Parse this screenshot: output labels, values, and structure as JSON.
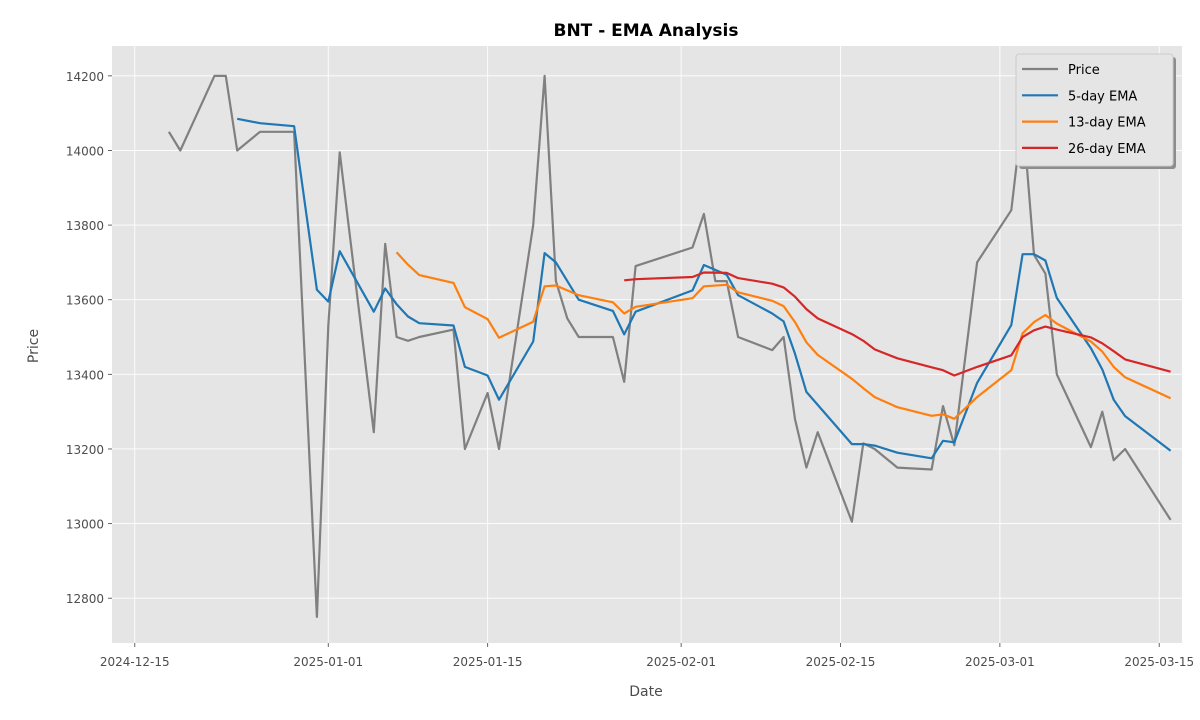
{
  "chart_data": {
    "type": "line",
    "title": "BNT - EMA Analysis",
    "xlabel": "Date",
    "ylabel": "Price",
    "xlim": [
      "2024-12-13",
      "2025-03-17"
    ],
    "ylim": [
      12680,
      14280
    ],
    "x_ticks": [
      "2024-12-15",
      "2025-01-01",
      "2025-01-15",
      "2025-02-01",
      "2025-02-15",
      "2025-03-01",
      "2025-03-15"
    ],
    "y_ticks": [
      12800,
      13000,
      13200,
      13400,
      13600,
      13800,
      14000,
      14200
    ],
    "grid": true,
    "legend_position": "top-right",
    "series": [
      {
        "name": "Price",
        "color": "#808080",
        "points": [
          [
            "2024-12-18",
            14050
          ],
          [
            "2024-12-19",
            14000
          ],
          [
            "2024-12-22",
            14200
          ],
          [
            "2024-12-23",
            14200
          ],
          [
            "2024-12-24",
            14000
          ],
          [
            "2024-12-26",
            14050
          ],
          [
            "2024-12-29",
            14050
          ],
          [
            "2024-12-31",
            12750
          ],
          [
            "2025-01-01",
            13530
          ],
          [
            "2025-01-02",
            13995
          ],
          [
            "2025-01-05",
            13245
          ],
          [
            "2025-01-06",
            13750
          ],
          [
            "2025-01-07",
            13500
          ],
          [
            "2025-01-08",
            13490
          ],
          [
            "2025-01-09",
            13500
          ],
          [
            "2025-01-12",
            13520
          ],
          [
            "2025-01-13",
            13200
          ],
          [
            "2025-01-15",
            13350
          ],
          [
            "2025-01-16",
            13200
          ],
          [
            "2025-01-19",
            13800
          ],
          [
            "2025-01-20",
            14200
          ],
          [
            "2025-01-21",
            13650
          ],
          [
            "2025-01-22",
            13550
          ],
          [
            "2025-01-23",
            13500
          ],
          [
            "2025-01-26",
            13500
          ],
          [
            "2025-01-27",
            13380
          ],
          [
            "2025-01-28",
            13690
          ],
          [
            "2025-02-02",
            13740
          ],
          [
            "2025-02-03",
            13830
          ],
          [
            "2025-02-04",
            13650
          ],
          [
            "2025-02-05",
            13650
          ],
          [
            "2025-02-06",
            13500
          ],
          [
            "2025-02-09",
            13465
          ],
          [
            "2025-02-10",
            13500
          ],
          [
            "2025-02-11",
            13280
          ],
          [
            "2025-02-12",
            13150
          ],
          [
            "2025-02-13",
            13245
          ],
          [
            "2025-02-16",
            13005
          ],
          [
            "2025-02-17",
            13215
          ],
          [
            "2025-02-18",
            13200
          ],
          [
            "2025-02-20",
            13150
          ],
          [
            "2025-02-23",
            13145
          ],
          [
            "2025-02-24",
            13315
          ],
          [
            "2025-02-25",
            13210
          ],
          [
            "2025-02-27",
            13700
          ],
          [
            "2025-03-02",
            13840
          ],
          [
            "2025-03-03",
            14100
          ],
          [
            "2025-03-04",
            13720
          ],
          [
            "2025-03-05",
            13670
          ],
          [
            "2025-03-06",
            13400
          ],
          [
            "2025-03-09",
            13205
          ],
          [
            "2025-03-10",
            13300
          ],
          [
            "2025-03-11",
            13170
          ],
          [
            "2025-03-12",
            13200
          ],
          [
            "2025-03-16",
            13010
          ]
        ]
      },
      {
        "name": "5-day EMA",
        "color": "#1f77b4",
        "points": [
          [
            "2024-12-24",
            14085
          ],
          [
            "2024-12-26",
            14073
          ],
          [
            "2024-12-29",
            14065
          ],
          [
            "2024-12-31",
            13627
          ],
          [
            "2025-01-01",
            13595
          ],
          [
            "2025-01-02",
            13730
          ],
          [
            "2025-01-05",
            13568
          ],
          [
            "2025-01-06",
            13630
          ],
          [
            "2025-01-07",
            13588
          ],
          [
            "2025-01-08",
            13555
          ],
          [
            "2025-01-09",
            13537
          ],
          [
            "2025-01-12",
            13531
          ],
          [
            "2025-01-13",
            13420
          ],
          [
            "2025-01-15",
            13397
          ],
          [
            "2025-01-16",
            13332
          ],
          [
            "2025-01-19",
            13488
          ],
          [
            "2025-01-20",
            13725
          ],
          [
            "2025-01-21",
            13700
          ],
          [
            "2025-01-23",
            13600
          ],
          [
            "2025-01-26",
            13570
          ],
          [
            "2025-01-27",
            13507
          ],
          [
            "2025-01-28",
            13568
          ],
          [
            "2025-02-02",
            13625
          ],
          [
            "2025-02-03",
            13693
          ],
          [
            "2025-02-05",
            13667
          ],
          [
            "2025-02-06",
            13612
          ],
          [
            "2025-02-09",
            13563
          ],
          [
            "2025-02-10",
            13542
          ],
          [
            "2025-02-11",
            13455
          ],
          [
            "2025-02-12",
            13353
          ],
          [
            "2025-02-16",
            13213
          ],
          [
            "2025-02-17",
            13213
          ],
          [
            "2025-02-18",
            13209
          ],
          [
            "2025-02-20",
            13190
          ],
          [
            "2025-02-23",
            13175
          ],
          [
            "2025-02-24",
            13222
          ],
          [
            "2025-02-25",
            13218
          ],
          [
            "2025-02-27",
            13377
          ],
          [
            "2025-03-02",
            13532
          ],
          [
            "2025-03-03",
            13722
          ],
          [
            "2025-03-04",
            13722
          ],
          [
            "2025-03-05",
            13705
          ],
          [
            "2025-03-06",
            13605
          ],
          [
            "2025-03-09",
            13470
          ],
          [
            "2025-03-10",
            13413
          ],
          [
            "2025-03-11",
            13332
          ],
          [
            "2025-03-12",
            13288
          ],
          [
            "2025-03-16",
            13195
          ]
        ]
      },
      {
        "name": "13-day EMA",
        "color": "#ff7f0e",
        "points": [
          [
            "2025-01-07",
            13727
          ],
          [
            "2025-01-08",
            13694
          ],
          [
            "2025-01-09",
            13666
          ],
          [
            "2025-01-12",
            13645
          ],
          [
            "2025-01-13",
            13580
          ],
          [
            "2025-01-15",
            13548
          ],
          [
            "2025-01-16",
            13498
          ],
          [
            "2025-01-19",
            13541
          ],
          [
            "2025-01-20",
            13636
          ],
          [
            "2025-01-21",
            13638
          ],
          [
            "2025-01-23",
            13612
          ],
          [
            "2025-01-26",
            13593
          ],
          [
            "2025-01-27",
            13563
          ],
          [
            "2025-01-28",
            13581
          ],
          [
            "2025-02-02",
            13604
          ],
          [
            "2025-02-03",
            13636
          ],
          [
            "2025-02-05",
            13640
          ],
          [
            "2025-02-06",
            13620
          ],
          [
            "2025-02-09",
            13597
          ],
          [
            "2025-02-10",
            13583
          ],
          [
            "2025-02-11",
            13540
          ],
          [
            "2025-02-12",
            13486
          ],
          [
            "2025-02-13",
            13452
          ],
          [
            "2025-02-16",
            13388
          ],
          [
            "2025-02-17",
            13363
          ],
          [
            "2025-02-18",
            13339
          ],
          [
            "2025-02-20",
            13312
          ],
          [
            "2025-02-23",
            13289
          ],
          [
            "2025-02-24",
            13293
          ],
          [
            "2025-02-25",
            13281
          ],
          [
            "2025-02-27",
            13339
          ],
          [
            "2025-03-02",
            13411
          ],
          [
            "2025-03-03",
            13510
          ],
          [
            "2025-03-04",
            13540
          ],
          [
            "2025-03-05",
            13559
          ],
          [
            "2025-03-06",
            13536
          ],
          [
            "2025-03-09",
            13488
          ],
          [
            "2025-03-10",
            13461
          ],
          [
            "2025-03-11",
            13420
          ],
          [
            "2025-03-12",
            13392
          ],
          [
            "2025-03-16",
            13336
          ]
        ]
      },
      {
        "name": "26-day EMA",
        "color": "#d62728",
        "points": [
          [
            "2025-01-27",
            13652
          ],
          [
            "2025-01-28",
            13655
          ],
          [
            "2025-02-02",
            13661
          ],
          [
            "2025-02-03",
            13673
          ],
          [
            "2025-02-05",
            13672
          ],
          [
            "2025-02-06",
            13658
          ],
          [
            "2025-02-09",
            13643
          ],
          [
            "2025-02-10",
            13633
          ],
          [
            "2025-02-11",
            13608
          ],
          [
            "2025-02-12",
            13575
          ],
          [
            "2025-02-13",
            13550
          ],
          [
            "2025-02-16",
            13508
          ],
          [
            "2025-02-17",
            13490
          ],
          [
            "2025-02-18",
            13467
          ],
          [
            "2025-02-20",
            13443
          ],
          [
            "2025-02-23",
            13419
          ],
          [
            "2025-02-24",
            13411
          ],
          [
            "2025-02-25",
            13397
          ],
          [
            "2025-02-27",
            13420
          ],
          [
            "2025-03-02",
            13451
          ],
          [
            "2025-03-03",
            13500
          ],
          [
            "2025-03-04",
            13518
          ],
          [
            "2025-03-05",
            13528
          ],
          [
            "2025-03-06",
            13520
          ],
          [
            "2025-03-09",
            13499
          ],
          [
            "2025-03-10",
            13483
          ],
          [
            "2025-03-11",
            13462
          ],
          [
            "2025-03-12",
            13440
          ],
          [
            "2025-03-16",
            13407
          ]
        ]
      }
    ]
  }
}
